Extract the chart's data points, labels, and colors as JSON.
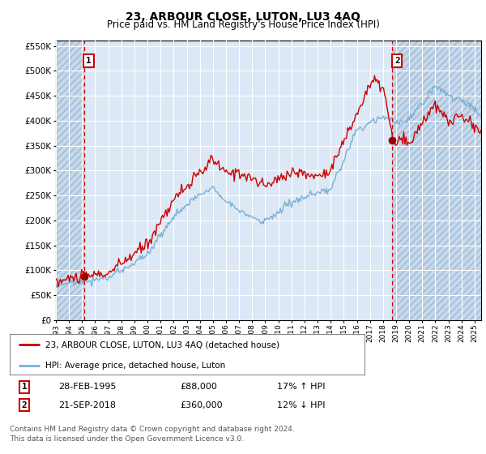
{
  "title": "23, ARBOUR CLOSE, LUTON, LU3 4AQ",
  "subtitle": "Price paid vs. HM Land Registry's House Price Index (HPI)",
  "legend_line1": "23, ARBOUR CLOSE, LUTON, LU3 4AQ (detached house)",
  "legend_line2": "HPI: Average price, detached house, Luton",
  "transaction1_date": "28-FEB-1995",
  "transaction1_price": "£88,000",
  "transaction1_hpi": "17% ↑ HPI",
  "transaction1_year": 1995.15,
  "transaction1_value": 88000,
  "transaction2_date": "21-SEP-2018",
  "transaction2_price": "£360,000",
  "transaction2_hpi": "12% ↓ HPI",
  "transaction2_year": 2018.72,
  "transaction2_value": 360000,
  "xmin": 1993,
  "xmax": 2025.5,
  "ylim": [
    0,
    560000
  ],
  "yticks": [
    0,
    50000,
    100000,
    150000,
    200000,
    250000,
    300000,
    350000,
    400000,
    450000,
    500000,
    550000
  ],
  "plot_bg": "#dce8f5",
  "hatch_bg": "#c5d8ec",
  "grid_color": "#ffffff",
  "line_color_red": "#cc0000",
  "line_color_blue": "#7ab0d4",
  "footnote": "Contains HM Land Registry data © Crown copyright and database right 2024.\nThis data is licensed under the Open Government Licence v3.0."
}
